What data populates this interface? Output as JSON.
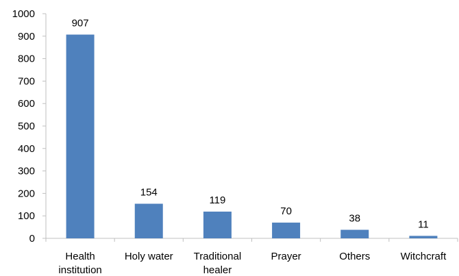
{
  "chart_data": {
    "type": "bar",
    "categories": [
      "Health institution",
      "Holy water",
      "Traditional healer",
      "Prayer",
      "Others",
      "Witchcraft"
    ],
    "category_lines": [
      [
        "Health",
        "institution"
      ],
      [
        "Holy water"
      ],
      [
        "Traditional",
        "healer"
      ],
      [
        "Prayer"
      ],
      [
        "Others"
      ],
      [
        "Witchcraft"
      ]
    ],
    "values": [
      907,
      154,
      119,
      70,
      38,
      11
    ],
    "data_labels": [
      "907",
      "154",
      "119",
      "70",
      "38",
      "11"
    ],
    "ylim": [
      0,
      1000
    ],
    "yticks": [
      0,
      100,
      200,
      300,
      400,
      500,
      600,
      700,
      800,
      900,
      1000
    ],
    "ytick_labels": [
      "0",
      "100",
      "200",
      "300",
      "400",
      "500",
      "600",
      "700",
      "800",
      "900",
      "1000"
    ],
    "grid": false,
    "legend": "none",
    "title": "",
    "xlabel": "",
    "ylabel": "",
    "bar_color": "#4F81BD",
    "axis_color": "#BFBFBF"
  }
}
